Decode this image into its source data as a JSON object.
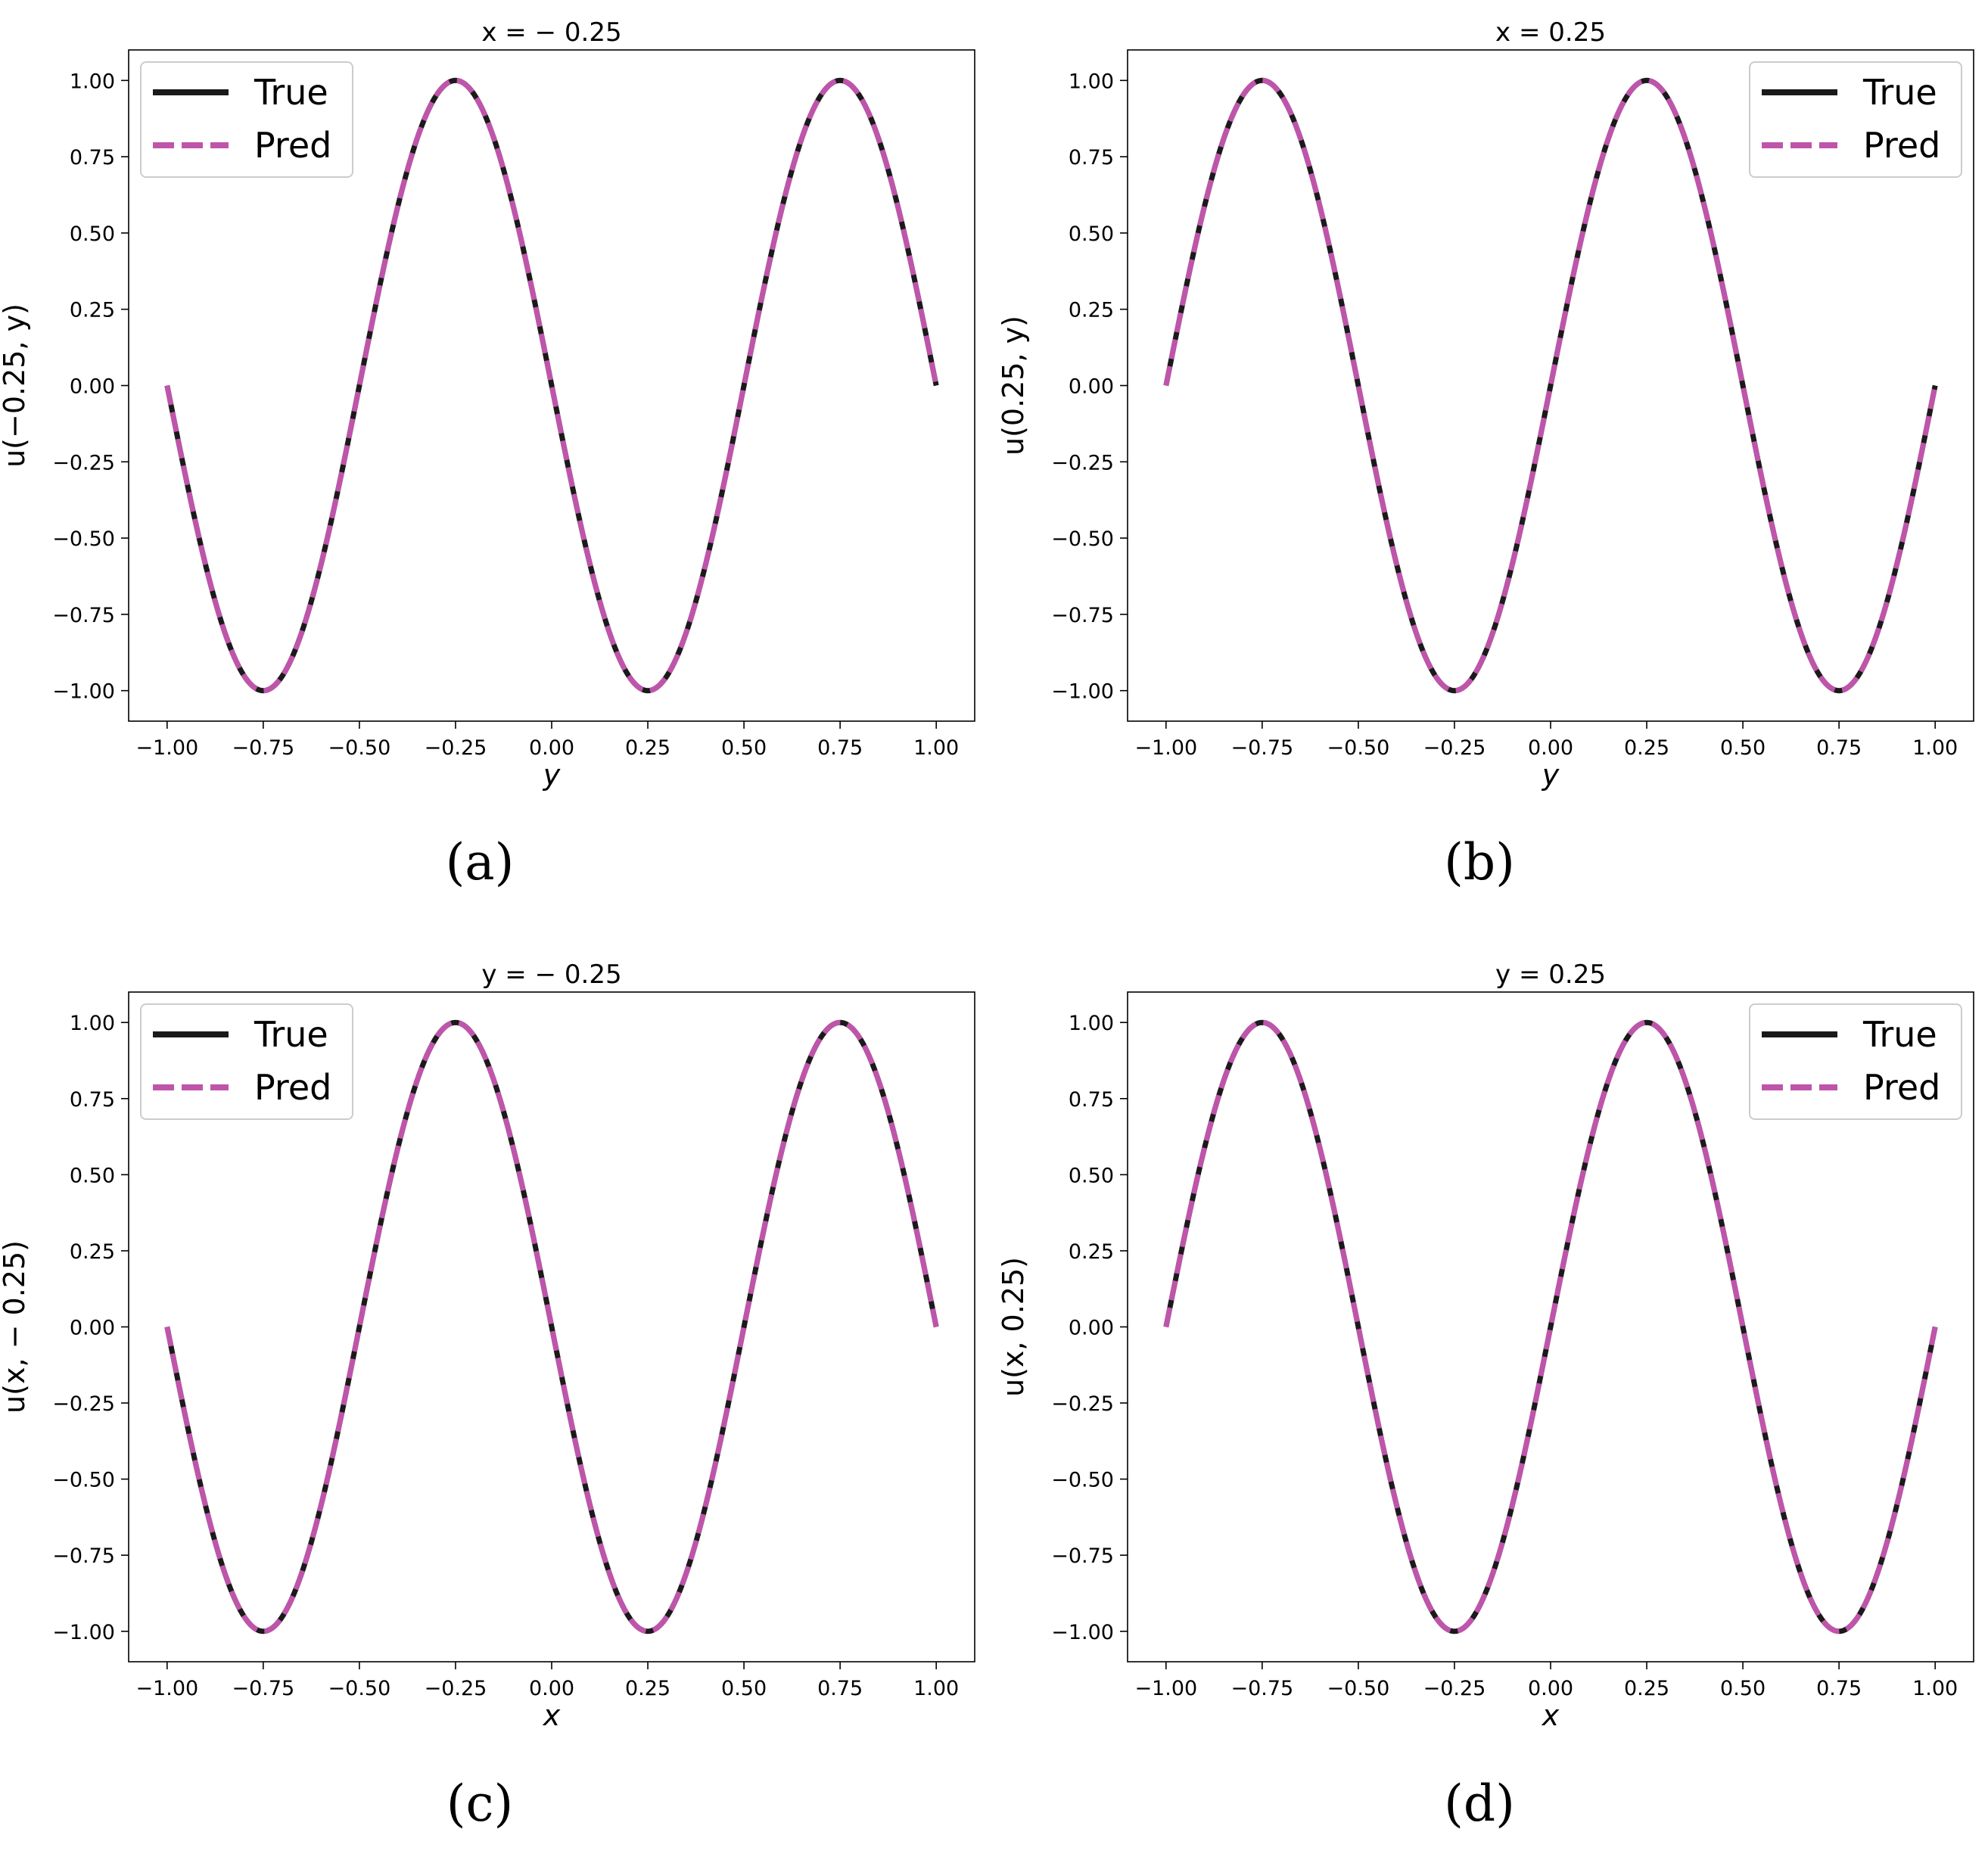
{
  "colors": {
    "true_line": "#1a1a1a",
    "pred_line": "#bf55ab"
  },
  "chart_data": [
    {
      "type": "line",
      "panel_label": "(a)",
      "title": "x = − 0.25",
      "xlabel": "y",
      "ylabel": "u(−0.25, y)",
      "xlim": [
        -1.0,
        1.0
      ],
      "ylim": [
        -1.0,
        1.0
      ],
      "xticks": [
        -1.0,
        -0.75,
        -0.5,
        -0.25,
        0.0,
        0.25,
        0.5,
        0.75,
        1.0
      ],
      "xtick_labels": [
        "−1.00",
        "−0.75",
        "−0.50",
        "−0.25",
        "0.00",
        "0.25",
        "0.50",
        "0.75",
        "1.00"
      ],
      "yticks": [
        1.0,
        0.75,
        0.5,
        0.25,
        0.0,
        -0.25,
        -0.5,
        -0.75,
        -1.0
      ],
      "ytick_labels": [
        "1.00",
        "0.75",
        "0.50",
        "0.25",
        "0.00",
        "−0.25",
        "−0.50",
        "−0.75",
        "−1.00"
      ],
      "legend_position": "upper left",
      "series": [
        {
          "name": "True",
          "style": "solid",
          "x": [
            -1.0,
            -0.75,
            -0.5,
            -0.25,
            0.0,
            0.25,
            0.5,
            0.75,
            1.0
          ],
          "y": [
            0.0,
            -1.0,
            0.0,
            1.0,
            0.0,
            -1.0,
            0.0,
            1.0,
            0.0
          ]
        },
        {
          "name": "Pred",
          "style": "dashed",
          "x": [
            -1.0,
            -0.75,
            -0.5,
            -0.25,
            0.0,
            0.25,
            0.5,
            0.75,
            1.0
          ],
          "y": [
            0.0,
            -1.0,
            0.0,
            1.0,
            0.0,
            -1.0,
            0.0,
            1.0,
            0.0
          ]
        }
      ]
    },
    {
      "type": "line",
      "panel_label": "(b)",
      "title": "x = 0.25",
      "xlabel": "y",
      "ylabel": "u(0.25, y)",
      "xlim": [
        -1.0,
        1.0
      ],
      "ylim": [
        -1.0,
        1.0
      ],
      "xticks": [
        -1.0,
        -0.75,
        -0.5,
        -0.25,
        0.0,
        0.25,
        0.5,
        0.75,
        1.0
      ],
      "xtick_labels": [
        "−1.00",
        "−0.75",
        "−0.50",
        "−0.25",
        "0.00",
        "0.25",
        "0.50",
        "0.75",
        "1.00"
      ],
      "yticks": [
        1.0,
        0.75,
        0.5,
        0.25,
        0.0,
        -0.25,
        -0.5,
        -0.75,
        -1.0
      ],
      "ytick_labels": [
        "1.00",
        "0.75",
        "0.50",
        "0.25",
        "0.00",
        "−0.25",
        "−0.50",
        "−0.75",
        "−1.00"
      ],
      "legend_position": "upper right",
      "series": [
        {
          "name": "True",
          "style": "solid",
          "x": [
            -1.0,
            -0.75,
            -0.5,
            -0.25,
            0.0,
            0.25,
            0.5,
            0.75,
            1.0
          ],
          "y": [
            0.0,
            1.0,
            0.0,
            -1.0,
            0.0,
            1.0,
            0.0,
            -1.0,
            0.0
          ]
        },
        {
          "name": "Pred",
          "style": "dashed",
          "x": [
            -1.0,
            -0.75,
            -0.5,
            -0.25,
            0.0,
            0.25,
            0.5,
            0.75,
            1.0
          ],
          "y": [
            0.0,
            1.0,
            0.0,
            -1.0,
            0.0,
            1.0,
            0.0,
            -1.0,
            0.0
          ]
        }
      ]
    },
    {
      "type": "line",
      "panel_label": "(c)",
      "title": "y = − 0.25",
      "xlabel": "x",
      "ylabel": "u(x, − 0.25)",
      "xlim": [
        -1.0,
        1.0
      ],
      "ylim": [
        -1.0,
        1.0
      ],
      "xticks": [
        -1.0,
        -0.75,
        -0.5,
        -0.25,
        0.0,
        0.25,
        0.5,
        0.75,
        1.0
      ],
      "xtick_labels": [
        "−1.00",
        "−0.75",
        "−0.50",
        "−0.25",
        "0.00",
        "0.25",
        "0.50",
        "0.75",
        "1.00"
      ],
      "yticks": [
        1.0,
        0.75,
        0.5,
        0.25,
        0.0,
        -0.25,
        -0.5,
        -0.75,
        -1.0
      ],
      "ytick_labels": [
        "1.00",
        "0.75",
        "0.50",
        "0.25",
        "0.00",
        "−0.25",
        "−0.50",
        "−0.75",
        "−1.00"
      ],
      "legend_position": "upper left",
      "series": [
        {
          "name": "True",
          "style": "solid",
          "x": [
            -1.0,
            -0.75,
            -0.5,
            -0.25,
            0.0,
            0.25,
            0.5,
            0.75,
            1.0
          ],
          "y": [
            0.0,
            -1.0,
            0.0,
            1.0,
            0.0,
            -1.0,
            0.0,
            1.0,
            0.0
          ]
        },
        {
          "name": "Pred",
          "style": "dashed",
          "x": [
            -1.0,
            -0.75,
            -0.5,
            -0.25,
            0.0,
            0.25,
            0.5,
            0.75,
            1.0
          ],
          "y": [
            0.0,
            -1.0,
            0.0,
            1.0,
            0.0,
            -1.0,
            0.0,
            1.0,
            0.0
          ]
        }
      ]
    },
    {
      "type": "line",
      "panel_label": "(d)",
      "title": "y = 0.25",
      "xlabel": "x",
      "ylabel": "u(x, 0.25)",
      "xlim": [
        -1.0,
        1.0
      ],
      "ylim": [
        -1.0,
        1.0
      ],
      "xticks": [
        -1.0,
        -0.75,
        -0.5,
        -0.25,
        0.0,
        0.25,
        0.5,
        0.75,
        1.0
      ],
      "xtick_labels": [
        "−1.00",
        "−0.75",
        "−0.50",
        "−0.25",
        "0.00",
        "0.25",
        "0.50",
        "0.75",
        "1.00"
      ],
      "yticks": [
        1.0,
        0.75,
        0.5,
        0.25,
        0.0,
        -0.25,
        -0.5,
        -0.75,
        -1.0
      ],
      "ytick_labels": [
        "1.00",
        "0.75",
        "0.50",
        "0.25",
        "0.00",
        "−0.25",
        "−0.50",
        "−0.75",
        "−1.00"
      ],
      "legend_position": "upper right",
      "series": [
        {
          "name": "True",
          "style": "solid",
          "x": [
            -1.0,
            -0.75,
            -0.5,
            -0.25,
            0.0,
            0.25,
            0.5,
            0.75,
            1.0
          ],
          "y": [
            0.0,
            1.0,
            0.0,
            -1.0,
            0.0,
            1.0,
            0.0,
            -1.0,
            0.0
          ]
        },
        {
          "name": "Pred",
          "style": "dashed",
          "x": [
            -1.0,
            -0.75,
            -0.5,
            -0.25,
            0.0,
            0.25,
            0.5,
            0.75,
            1.0
          ],
          "y": [
            0.0,
            1.0,
            0.0,
            -1.0,
            0.0,
            1.0,
            0.0,
            -1.0,
            0.0
          ]
        }
      ]
    }
  ]
}
